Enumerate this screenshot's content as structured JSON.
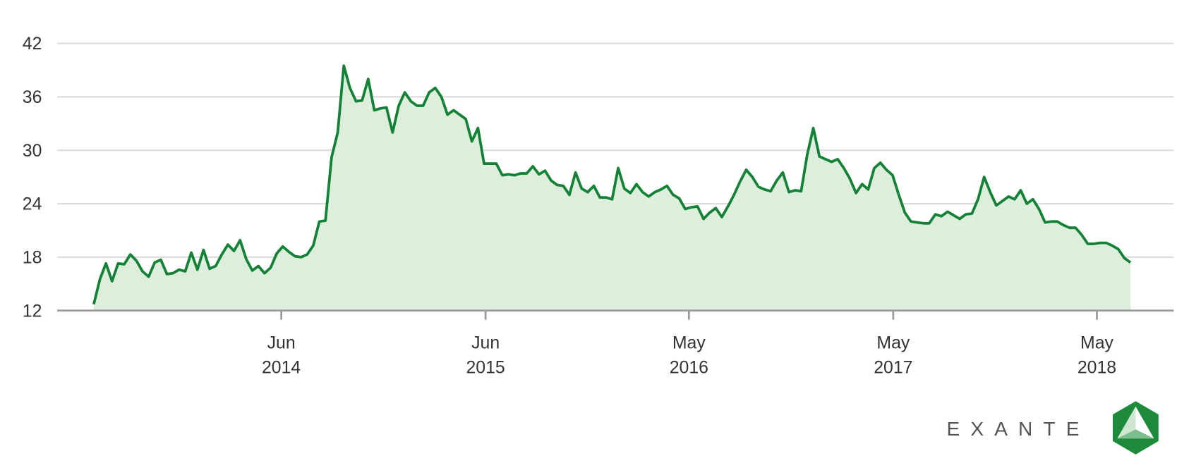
{
  "chart_data": {
    "type": "area",
    "logo": "EXANTE",
    "color": "#138236",
    "fill": "#deeedd",
    "grid": true,
    "values": [
      12.7,
      15.5,
      17.3,
      15.3,
      17.3,
      17.2,
      18.3,
      17.6,
      16.4,
      15.8,
      17.4,
      17.7,
      16.1,
      16.2,
      16.6,
      16.4,
      18.5,
      16.6,
      18.8,
      16.7,
      17.0,
      18.3,
      19.4,
      18.7,
      19.9,
      17.8,
      16.5,
      17.0,
      16.2,
      16.8,
      18.4,
      19.2,
      18.6,
      18.1,
      18.0,
      18.3,
      19.3,
      22.0,
      22.1,
      29.2,
      32.0,
      39.5,
      37.0,
      35.5,
      35.6,
      38.0,
      34.5,
      34.7,
      34.8,
      32.0,
      35.0,
      36.5,
      35.5,
      35.0,
      35.0,
      36.5,
      37.0,
      36.0,
      34.0,
      34.5,
      34.0,
      33.5,
      31.0,
      32.5,
      28.5,
      28.5,
      28.5,
      27.2,
      27.3,
      27.2,
      27.4,
      27.4,
      28.2,
      27.3,
      27.7,
      26.6,
      26.1,
      26.0,
      25.0,
      27.5,
      25.7,
      25.3,
      26.0,
      24.7,
      24.7,
      24.5,
      28.0,
      25.7,
      25.2,
      26.2,
      25.3,
      24.8,
      25.3,
      25.6,
      26.0,
      25.0,
      24.6,
      23.4,
      23.6,
      23.7,
      22.3,
      23.0,
      23.5,
      22.5,
      23.7,
      25.0,
      26.5,
      27.8,
      27.0,
      25.9,
      25.6,
      25.4,
      26.6,
      27.5,
      25.3,
      25.5,
      25.4,
      29.5,
      32.5,
      29.3,
      29.0,
      28.7,
      29.0,
      28.0,
      26.8,
      25.2,
      26.2,
      25.6,
      28.0,
      28.6,
      27.8,
      27.2,
      25.0,
      23.0,
      22.0,
      21.9,
      21.8,
      21.8,
      22.8,
      22.6,
      23.1,
      22.7,
      22.3,
      22.8,
      22.9,
      24.5,
      27.0,
      25.3,
      23.8,
      24.3,
      24.8,
      24.5,
      25.5,
      24.0,
      24.5,
      23.4,
      21.9,
      22.0,
      22.0,
      21.6,
      21.3,
      21.3,
      20.5,
      19.5,
      19.5,
      19.6,
      19.6,
      19.3,
      18.9,
      17.9,
      17.4
    ],
    "xlim": [
      -6,
      177.1
    ],
    "xticks": [
      {
        "value": 30.75,
        "label": "Jun\n2014"
      },
      {
        "value": 64.25,
        "label": "Jun\n2015"
      },
      {
        "value": 97.6,
        "label": "May\n2016"
      },
      {
        "value": 131.1,
        "label": "May\n2017"
      },
      {
        "value": 164.5,
        "label": "May\n2018"
      }
    ],
    "ylim": [
      12,
      42
    ],
    "yticks": [
      12,
      18,
      24,
      30,
      36,
      42
    ]
  }
}
